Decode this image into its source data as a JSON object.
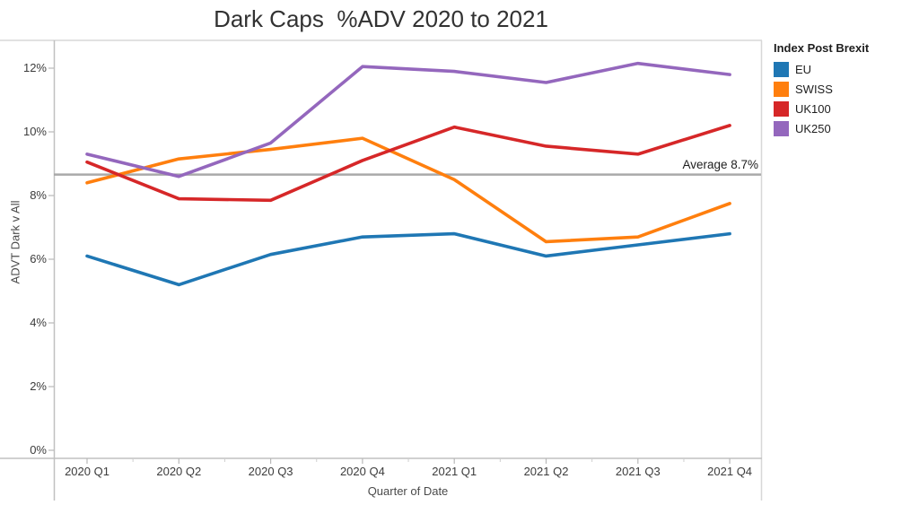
{
  "window": {
    "title": "Dark Caps  %ADV 2020 to 2021"
  },
  "chart_data": {
    "type": "line",
    "title": "Dark Caps  %ADV 2020 to 2021",
    "xlabel": "Quarter of Date",
    "ylabel": "ADVT Dark v All",
    "legend_title": "Index Post Brexit",
    "legend_position": "right",
    "grid": false,
    "categories": [
      "2020 Q1",
      "2020 Q2",
      "2020 Q3",
      "2020 Q4",
      "2021 Q1",
      "2021 Q2",
      "2021 Q3",
      "2021 Q4"
    ],
    "series": [
      {
        "name": "EU",
        "color": "#1F77B4",
        "values": [
          6.1,
          5.2,
          6.15,
          6.7,
          6.8,
          6.1,
          6.45,
          6.8
        ]
      },
      {
        "name": "SWISS",
        "color": "#FF7F0E",
        "values": [
          8.4,
          9.15,
          9.45,
          9.8,
          8.5,
          6.55,
          6.7,
          7.75
        ]
      },
      {
        "name": "UK100",
        "color": "#D62728",
        "values": [
          9.05,
          7.9,
          7.85,
          9.1,
          10.15,
          9.55,
          9.3,
          10.2
        ]
      },
      {
        "name": "UK250",
        "color": "#9467BD",
        "values": [
          9.3,
          8.6,
          9.65,
          12.05,
          11.9,
          11.55,
          12.15,
          11.8
        ]
      }
    ],
    "yticks": {
      "values": [
        0,
        2,
        4,
        6,
        8,
        10,
        12
      ],
      "labels": [
        "0%",
        "2%",
        "4%",
        "6%",
        "8%",
        "10%",
        "12%"
      ]
    },
    "ylim": [
      0,
      12.9
    ],
    "average_line": {
      "value": 8.7,
      "label": "Average 8.7%",
      "color": "#A9A9A9"
    }
  }
}
